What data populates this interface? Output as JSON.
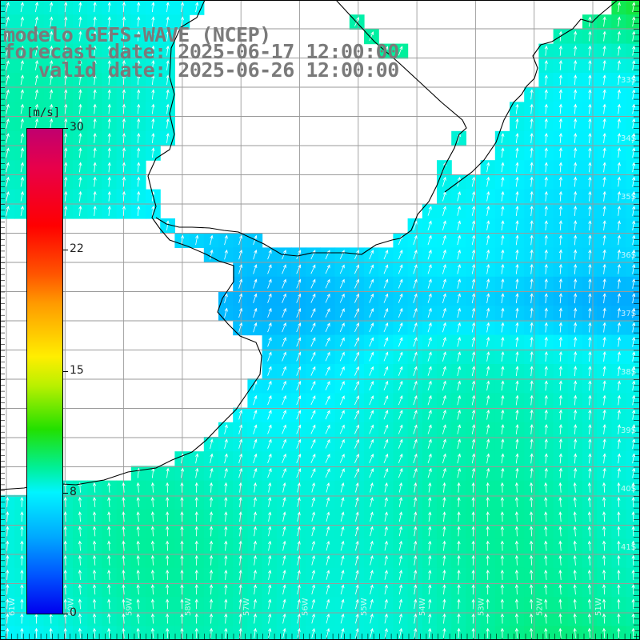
{
  "title": {
    "model": "modelo GEFS-WAVE (NCEP)",
    "forecast_date": "forecast date: 2025-06-17 12:00:00",
    "valid_date": "   valid date: 2025-06-26 12:00:00"
  },
  "colorbar": {
    "unit": "[m/s]",
    "max_label": "30",
    "labels": [
      "30",
      "22",
      "15",
      "8",
      "0"
    ],
    "colors_top_to_bottom": [
      "#c0006f",
      "#ff0000",
      "#ff9a00",
      "#ffee00",
      "#22e000",
      "#00f4ff",
      "#0055ff",
      "#0000ee"
    ]
  },
  "map": {
    "land_color": "#ffffff",
    "coast_color": "#000000",
    "grid_color": "#9a9a9a",
    "arrow_color": "#ffffff",
    "lat_labels": [
      "33S",
      "34S",
      "35S",
      "36S",
      "37S",
      "38S",
      "39S",
      "40S",
      "41S"
    ],
    "lon_labels": [
      "61W",
      "60W",
      "59W",
      "58W",
      "57W",
      "56W",
      "55W",
      "54W",
      "53W",
      "52W",
      "51W"
    ],
    "wind_direction": "SSW to NNE"
  }
}
